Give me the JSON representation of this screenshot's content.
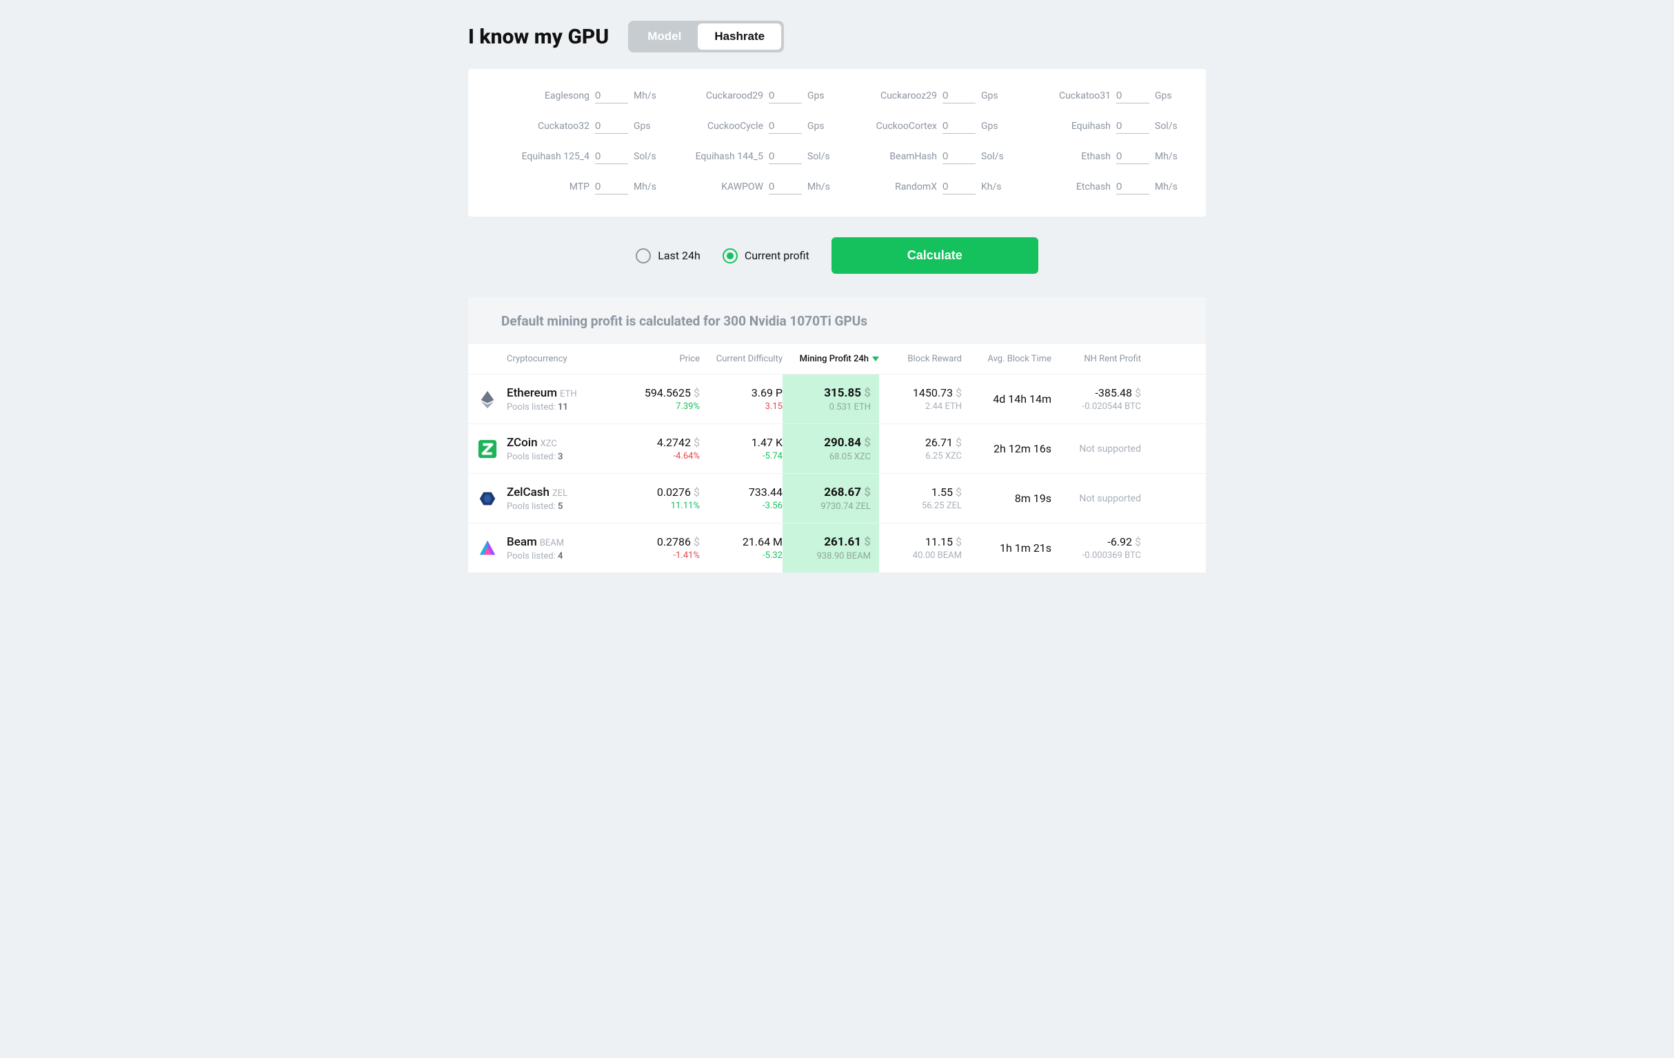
{
  "title": "I know my GPU",
  "toggle": {
    "model": "Model",
    "hashrate": "Hashrate",
    "selected": "hashrate"
  },
  "algos": [
    {
      "label": "Eaglesong",
      "value": "0",
      "unit": "Mh/s"
    },
    {
      "label": "Cuckarood29",
      "value": "0",
      "unit": "Gps"
    },
    {
      "label": "Cuckarooz29",
      "value": "0",
      "unit": "Gps"
    },
    {
      "label": "Cuckatoo31",
      "value": "0",
      "unit": "Gps"
    },
    {
      "label": "Cuckatoo32",
      "value": "0",
      "unit": "Gps"
    },
    {
      "label": "CuckooCycle",
      "value": "0",
      "unit": "Gps"
    },
    {
      "label": "CuckooCortex",
      "value": "0",
      "unit": "Gps"
    },
    {
      "label": "Equihash",
      "value": "0",
      "unit": "Sol/s"
    },
    {
      "label": "Equihash 125_4",
      "value": "0",
      "unit": "Sol/s"
    },
    {
      "label": "Equihash 144_5",
      "value": "0",
      "unit": "Sol/s"
    },
    {
      "label": "BeamHash",
      "value": "0",
      "unit": "Sol/s"
    },
    {
      "label": "Ethash",
      "value": "0",
      "unit": "Mh/s"
    },
    {
      "label": "MTP",
      "value": "0",
      "unit": "Mh/s"
    },
    {
      "label": "KAWPOW",
      "value": "0",
      "unit": "Mh/s"
    },
    {
      "label": "RandomX",
      "value": "0",
      "unit": "Kh/s"
    },
    {
      "label": "Etchash",
      "value": "0",
      "unit": "Mh/s"
    }
  ],
  "radios": {
    "last24h": "Last 24h",
    "current": "Current profit",
    "selected": "current"
  },
  "calculate": "Calculate",
  "banner": "Default mining profit is calculated for 300 Nvidia 1070Ti GPUs",
  "columns": {
    "crypto": "Cryptocurrency",
    "price": "Price",
    "difficulty": "Current Difficulty",
    "profit": "Mining Profit 24h",
    "reward": "Block Reward",
    "blocktime": "Avg. Block Time",
    "nhrent": "NH Rent Profit"
  },
  "pools_label": "Pools listed:",
  "rows": [
    {
      "name": "Ethereum",
      "sym": "ETH",
      "pools": "11",
      "price": "594.5625",
      "price_unit": "$",
      "price_change": "7.39%",
      "price_dir": "green",
      "diff": "3.69 P",
      "diff_change": "3.15",
      "diff_dir": "red",
      "profit": "315.85",
      "profit_unit": "$",
      "profit_sub": "0.531 ETH",
      "reward": "1450.73",
      "reward_unit": "$",
      "reward_sub": "2.44 ETH",
      "blocktime": "4d 14h 14m",
      "nh": "-385.48",
      "nh_unit": "$",
      "nh_sub": "-0.020544 BTC",
      "nh_supported": true,
      "icon": "eth"
    },
    {
      "name": "ZCoin",
      "sym": "XZC",
      "pools": "3",
      "price": "4.2742",
      "price_unit": "$",
      "price_change": "-4.64%",
      "price_dir": "red",
      "diff": "1.47 K",
      "diff_change": "-5.74",
      "diff_dir": "green",
      "profit": "290.84",
      "profit_unit": "$",
      "profit_sub": "68.05 XZC",
      "reward": "26.71",
      "reward_unit": "$",
      "reward_sub": "6.25 XZC",
      "blocktime": "2h 12m 16s",
      "nh": "Not supported",
      "nh_supported": false,
      "icon": "xzc"
    },
    {
      "name": "ZelCash",
      "sym": "ZEL",
      "pools": "5",
      "price": "0.0276",
      "price_unit": "$",
      "price_change": "11.11%",
      "price_dir": "green",
      "diff": "733.44",
      "diff_change": "-3.56",
      "diff_dir": "green",
      "profit": "268.67",
      "profit_unit": "$",
      "profit_sub": "9730.74 ZEL",
      "reward": "1.55",
      "reward_unit": "$",
      "reward_sub": "56.25 ZEL",
      "blocktime": "8m 19s",
      "nh": "Not supported",
      "nh_supported": false,
      "icon": "zel"
    },
    {
      "name": "Beam",
      "sym": "BEAM",
      "pools": "4",
      "price": "0.2786",
      "price_unit": "$",
      "price_change": "-1.41%",
      "price_dir": "red",
      "diff": "21.64 M",
      "diff_change": "-5.32",
      "diff_dir": "green",
      "profit": "261.61",
      "profit_unit": "$",
      "profit_sub": "938.90 BEAM",
      "reward": "11.15",
      "reward_unit": "$",
      "reward_sub": "40.00 BEAM",
      "blocktime": "1h 1m 21s",
      "nh": "-6.92",
      "nh_unit": "$",
      "nh_sub": "-0.000369 BTC",
      "nh_supported": true,
      "icon": "beam"
    }
  ],
  "colors": {
    "bg": "#eef1f3",
    "green": "#15c15d",
    "red": "#e6484d",
    "grey": "#8c95a1",
    "profit_bg": "#c9f5dd"
  }
}
